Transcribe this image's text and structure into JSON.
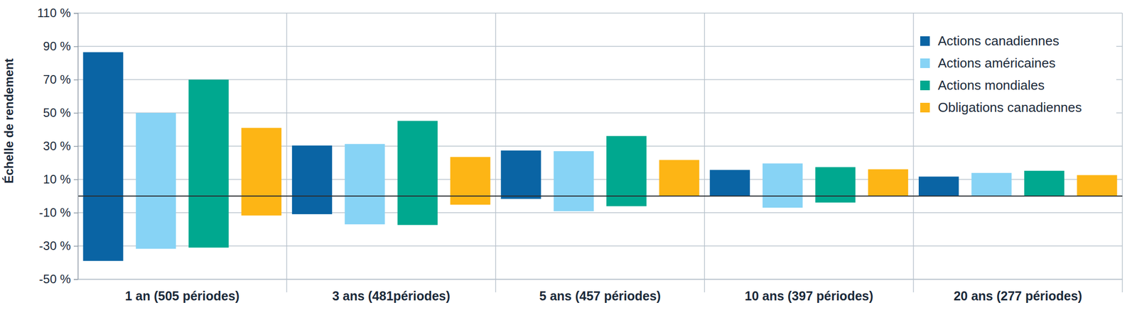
{
  "chart_data": {
    "type": "range_bar",
    "y_label": "Échelle de rendement",
    "categories": [
      "1 an (505 périodes)",
      "3 ans (481périodes)",
      "5 ans (457 périodes)",
      "10 ans (397 périodes)",
      "20 ans (277 périodes)"
    ],
    "series": [
      {
        "name": "Actions canadiennes",
        "color": "#0a64a4",
        "values": [
          86.5,
          30.4,
          27.4,
          15.7,
          11.7
        ],
        "low": [
          -39,
          -10.9,
          -1.7,
          0,
          0
        ]
      },
      {
        "name": "Actions américaines",
        "color": "#87d3f5",
        "values": [
          50,
          31.3,
          27,
          19.6,
          13.9
        ],
        "low": [
          -31.7,
          -17,
          -9.1,
          -7,
          0
        ]
      },
      {
        "name": "Actions mondiales",
        "color": "#00a88f",
        "values": [
          70,
          45.2,
          36.1,
          17.4,
          15.2
        ],
        "low": [
          -31,
          -17.4,
          -6.1,
          -3.9,
          0
        ]
      },
      {
        "name": "Obligations canadiennes",
        "color": "#fdb515",
        "values": [
          41,
          23.5,
          21.7,
          16.1,
          12.6
        ],
        "low": [
          -11.7,
          -5.2,
          0,
          0,
          0
        ]
      }
    ],
    "ylim": [
      -50,
      110
    ],
    "yticks": [
      {
        "value": -50,
        "label": "-50 %"
      },
      {
        "value": -30,
        "label": "-30 %"
      },
      {
        "value": -10,
        "label": "-10 %"
      },
      {
        "value": 10,
        "label": "10 %"
      },
      {
        "value": 30,
        "label": "30 %"
      },
      {
        "value": 50,
        "label": "50 %"
      },
      {
        "value": 70,
        "label": "70 %"
      },
      {
        "value": 90,
        "label": "90 %"
      },
      {
        "value": 110,
        "label": "110 %"
      }
    ],
    "grid": true,
    "legend": "top-right"
  }
}
